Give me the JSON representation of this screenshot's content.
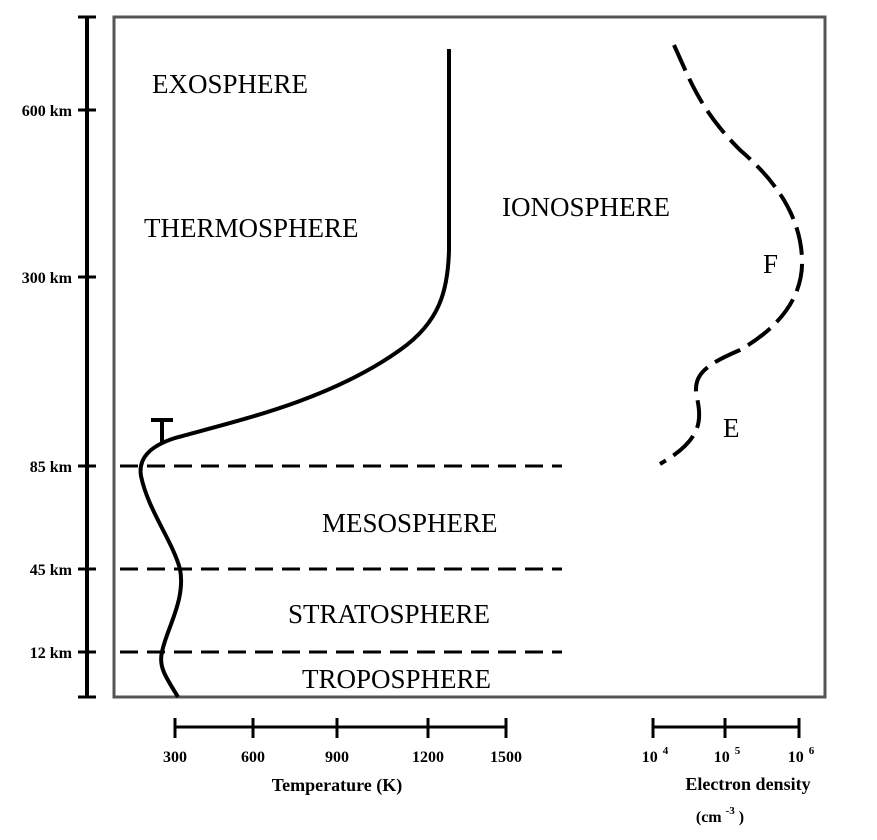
{
  "altitude_labels": [
    "600 km",
    "300 km",
    "85 km",
    "45 km",
    "12 km"
  ],
  "layer_labels": {
    "exosphere": "EXOSPHERE",
    "thermosphere": "THERMOSPHERE",
    "ionosphere": "IONOSPHERE",
    "mesosphere": "MESOSPHERE",
    "stratosphere": "STRATOSPHERE",
    "troposphere": "TROPOSPHERE"
  },
  "region_labels": {
    "f": "F",
    "e": "E"
  },
  "temperature_axis": {
    "ticks": [
      "300",
      "600",
      "900",
      "1200",
      "1500"
    ],
    "title": "Temperature (K)"
  },
  "density_axis": {
    "ticks": [
      {
        "base": "10",
        "exp": "4"
      },
      {
        "base": "10",
        "exp": "5"
      },
      {
        "base": "10",
        "exp": "6"
      }
    ],
    "title": "Electron density",
    "unit_base": "(cm",
    "unit_exp": "-3",
    "unit_close": ")"
  }
}
